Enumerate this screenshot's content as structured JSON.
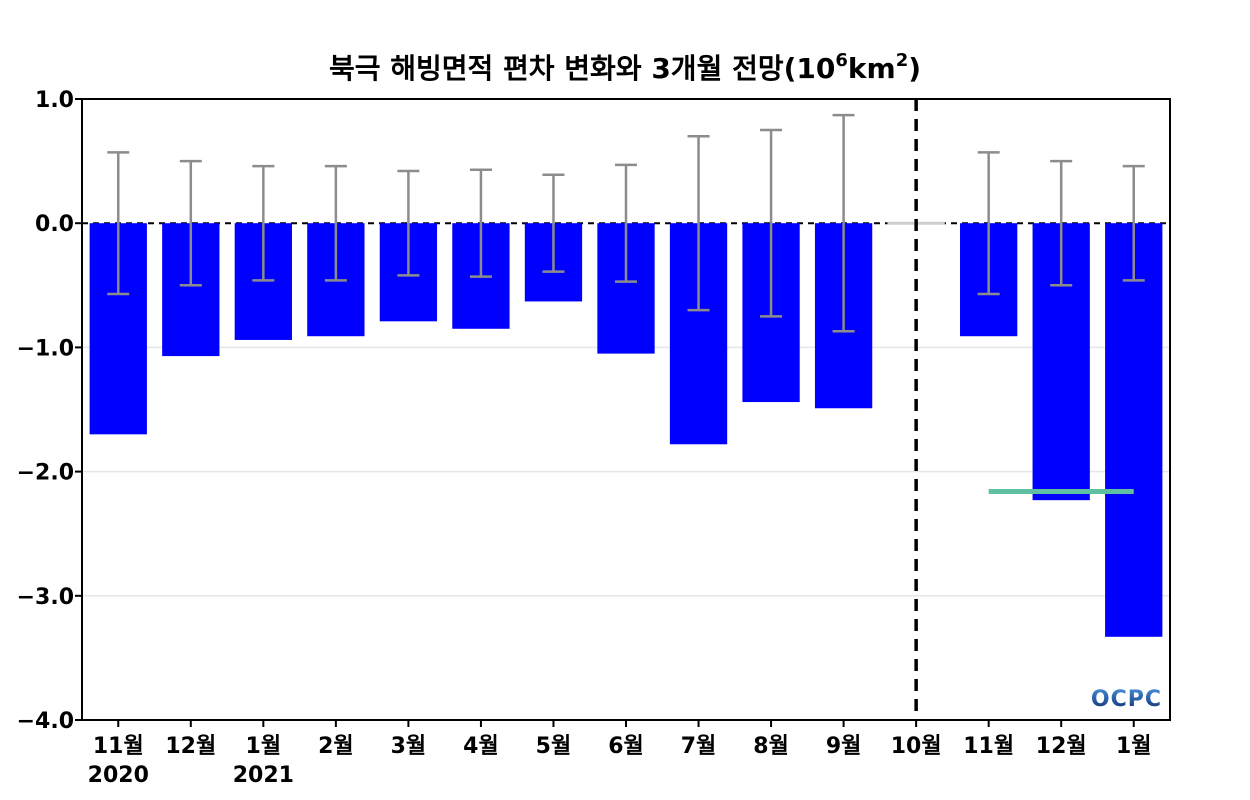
{
  "chart_data": {
    "type": "bar",
    "title": "북극 해빙면적 편차 변화와 3개월 전망(10⁶km²)",
    "title_main": "북극 해빙면적 편차 변화와 3개월 전망(10",
    "title_sup1": "6",
    "title_mid": "km",
    "title_sup2": "2",
    "title_end": ")",
    "categories": [
      "11월",
      "12월",
      "1월",
      "2월",
      "3월",
      "4월",
      "5월",
      "6월",
      "7월",
      "8월",
      "9월",
      "10월",
      "11월",
      "12월",
      "1월"
    ],
    "year_labels": [
      "2020",
      "",
      "2021",
      "",
      "",
      "",
      "",
      "",
      "",
      "",
      "",
      "",
      "",
      "",
      ""
    ],
    "values": [
      -1.7,
      -1.07,
      -0.94,
      -0.91,
      -0.79,
      -0.85,
      -0.63,
      -1.05,
      -1.78,
      -1.44,
      -1.49,
      0.0,
      -0.91,
      -2.23,
      -3.33
    ],
    "error_bars": [
      0.57,
      0.5,
      0.46,
      0.46,
      0.42,
      0.43,
      0.39,
      0.47,
      0.7,
      0.75,
      0.87,
      null,
      0.57,
      0.5,
      0.46
    ],
    "ylim": [
      -4.0,
      1.0
    ],
    "yticks": [
      1.0,
      0.0,
      -1.0,
      -2.0,
      -3.0,
      -4.0
    ],
    "ytick_labels": [
      "1.0",
      "0.0",
      "−1.0",
      "−2.0",
      "−3.0",
      "−4.0"
    ],
    "forecast_divider_category": "10월",
    "reference_line": {
      "value": -2.16,
      "from_category_index": 12,
      "to_category_index": 14
    },
    "grid": "horizontal",
    "logo_text": "OCPC",
    "colors": {
      "bar": "#0000ff",
      "error_bar": "#8c8c8c",
      "zero_line": "#000000",
      "divider": "#000000",
      "reference_line": "#5fbfa3",
      "grid": "#e6e6e6",
      "logo_top": "#4a90d9",
      "logo_bottom": "#0a2a6b"
    }
  }
}
